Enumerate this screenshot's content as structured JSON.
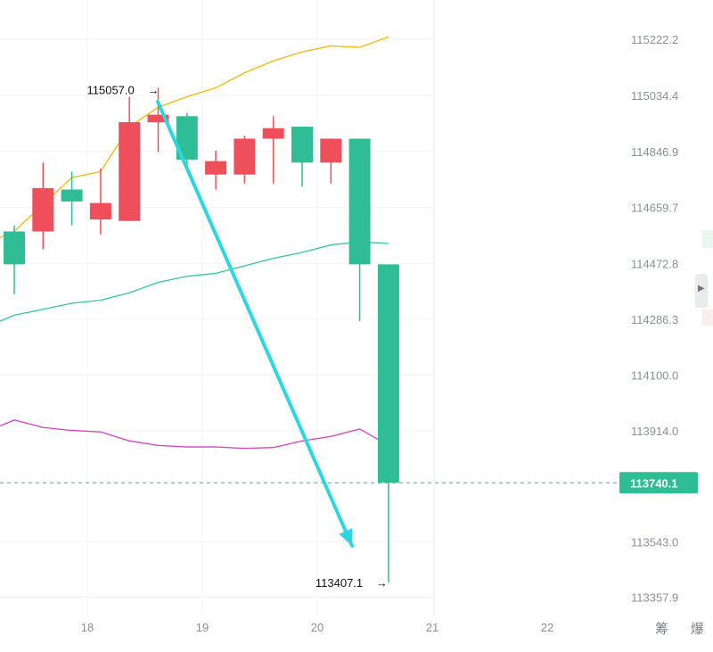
{
  "chart_data": {
    "type": "candlestick",
    "y_ticks": [
      "115222.2",
      "115034.4",
      "114846.9",
      "114659.7",
      "114472.8",
      "114286.3",
      "114100.0",
      "113914.0",
      "113543.0",
      "113357.9"
    ],
    "x_ticks": [
      "18",
      "19",
      "20",
      "21",
      "22"
    ],
    "ylim": [
      113300,
      115300
    ],
    "current_price": "113740.1",
    "high_annotation": "115057.0",
    "low_annotation": "113407.1",
    "candles": [
      {
        "open": 114580,
        "close": 114470,
        "high": 114600,
        "low": 114370
      },
      {
        "open": 114580,
        "close": 114725,
        "high": 114810,
        "low": 114520
      },
      {
        "open": 114720,
        "close": 114680,
        "high": 114780,
        "low": 114600
      },
      {
        "open": 114620,
        "close": 114675,
        "high": 114790,
        "low": 114570
      },
      {
        "open": 114615,
        "close": 114945,
        "high": 115030,
        "low": 114615
      },
      {
        "open": 114945,
        "close": 114970,
        "high": 115060,
        "low": 114845
      },
      {
        "open": 114965,
        "close": 114820,
        "high": 114975,
        "low": 114795
      },
      {
        "open": 114770,
        "close": 114815,
        "high": 114850,
        "low": 114720
      },
      {
        "open": 114770,
        "close": 114890,
        "high": 114900,
        "low": 114740
      },
      {
        "open": 114890,
        "close": 114925,
        "high": 114965,
        "low": 114740
      },
      {
        "open": 114930,
        "close": 114810,
        "high": 114930,
        "low": 114730
      },
      {
        "open": 114810,
        "close": 114890,
        "high": 114890,
        "low": 114740
      },
      {
        "open": 114890,
        "close": 114470,
        "high": 114890,
        "low": 114280
      },
      {
        "open": 114470,
        "close": 113740,
        "high": 114470,
        "low": 113407
      }
    ],
    "ma_lines": [
      {
        "color": "#f0b90b",
        "values": [
          114580,
          114670,
          114760,
          114780,
          114930,
          114995,
          115030,
          115060,
          115110,
          115150,
          115180,
          115200,
          115195,
          115230
        ]
      },
      {
        "color": "#2fc9a0",
        "values": [
          114300,
          114320,
          114340,
          114350,
          114375,
          114410,
          114430,
          114440,
          114465,
          114490,
          114510,
          114535,
          114545,
          114540
        ]
      },
      {
        "color": "#d63fc0",
        "values": [
          113950,
          113925,
          113915,
          113910,
          113880,
          113865,
          113860,
          113860,
          113855,
          113858,
          113880,
          113895,
          113920,
          113865
        ]
      }
    ],
    "colors": {
      "up": "#ef4f5a",
      "down": "#2ebd95",
      "arrow": "#2ad8dd",
      "grid": "#f2f3f5",
      "tag": "#2ebd95"
    }
  },
  "footer_labels": "筹 爆",
  "side_handle_icon": "chevron-right-icon"
}
